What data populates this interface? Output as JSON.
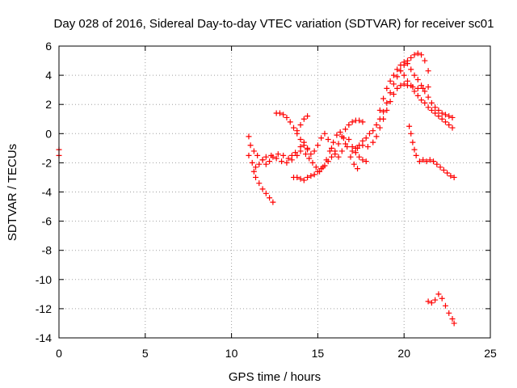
{
  "chart_data": {
    "type": "scatter",
    "title": "Day 028 of 2016, Sidereal Day-to-day VTEC variation (SDTVAR) for receiver sc01",
    "xlabel": "GPS time / hours",
    "ylabel": "SDTVAR / TECUs",
    "xlim": [
      0,
      25
    ],
    "ylim": [
      -14,
      6
    ],
    "xticks": [
      "0",
      "5",
      "10",
      "15",
      "20",
      "25"
    ],
    "yticks": [
      "6",
      "4",
      "2",
      "0",
      "-2",
      "-4",
      "-6",
      "-8",
      "-10",
      "-12",
      "-14"
    ],
    "grid": true,
    "marker": "+",
    "color": "#ff0000",
    "series": [
      {
        "name": "t0",
        "points": [
          [
            0.0,
            -1.1
          ],
          [
            0.0,
            -1.5
          ]
        ]
      },
      {
        "name": "a",
        "points": [
          [
            11.0,
            -0.2
          ],
          [
            11.1,
            -0.8
          ],
          [
            11.3,
            -1.2
          ],
          [
            11.5,
            -1.5
          ],
          [
            11.8,
            -1.8
          ],
          [
            12.0,
            -2.1
          ],
          [
            12.2,
            -1.9
          ],
          [
            12.4,
            -1.6
          ],
          [
            12.7,
            -1.4
          ],
          [
            13.0,
            -1.5
          ],
          [
            13.3,
            -1.7
          ],
          [
            13.5,
            -1.5
          ],
          [
            13.7,
            -1.3
          ],
          [
            14.0,
            -0.9
          ],
          [
            14.2,
            -0.6
          ],
          [
            14.4,
            -1.0
          ],
          [
            14.6,
            -1.4
          ],
          [
            14.8,
            -1.2
          ],
          [
            15.0,
            -0.8
          ],
          [
            15.2,
            -0.3
          ],
          [
            15.4,
            0.0
          ],
          [
            15.6,
            -0.4
          ],
          [
            15.8,
            -1.0
          ],
          [
            16.0,
            -1.4
          ],
          [
            16.2,
            -1.6
          ],
          [
            16.4,
            -1.2
          ],
          [
            16.6,
            -0.7
          ],
          [
            16.8,
            -0.4
          ],
          [
            17.0,
            -0.9
          ],
          [
            17.2,
            -1.3
          ],
          [
            17.4,
            -1.6
          ],
          [
            17.6,
            -1.8
          ],
          [
            17.8,
            -1.9
          ]
        ]
      },
      {
        "name": "b",
        "points": [
          [
            11.0,
            -1.5
          ],
          [
            11.2,
            -2.0
          ],
          [
            11.4,
            -2.3
          ],
          [
            11.6,
            -2.1
          ],
          [
            11.8,
            -1.8
          ],
          [
            12.0,
            -1.6
          ],
          [
            12.3,
            -1.5
          ],
          [
            12.6,
            -1.7
          ],
          [
            12.9,
            -1.9
          ],
          [
            13.2,
            -2.0
          ],
          [
            13.5,
            -1.8
          ],
          [
            13.8,
            -1.5
          ],
          [
            14.0,
            -1.2
          ],
          [
            14.3,
            -1.4
          ],
          [
            14.5,
            -1.7
          ],
          [
            14.7,
            -2.0
          ],
          [
            14.9,
            -2.3
          ],
          [
            15.1,
            -2.6
          ],
          [
            15.3,
            -2.3
          ],
          [
            15.5,
            -1.8
          ],
          [
            15.7,
            -1.2
          ],
          [
            15.9,
            -0.6
          ],
          [
            16.1,
            -0.1
          ],
          [
            16.3,
            0.1
          ],
          [
            16.5,
            -0.3
          ],
          [
            16.7,
            -0.9
          ],
          [
            16.9,
            -1.6
          ],
          [
            17.1,
            -2.1
          ],
          [
            17.3,
            -2.4
          ]
        ]
      },
      {
        "name": "c",
        "points": [
          [
            11.3,
            -2.6
          ],
          [
            11.4,
            -3.0
          ],
          [
            11.6,
            -3.4
          ],
          [
            11.8,
            -3.8
          ],
          [
            12.0,
            -4.1
          ],
          [
            12.2,
            -4.4
          ],
          [
            12.4,
            -4.7
          ]
        ]
      },
      {
        "name": "d",
        "points": [
          [
            12.6,
            1.4
          ],
          [
            12.8,
            1.4
          ],
          [
            13.0,
            1.3
          ],
          [
            13.2,
            1.1
          ],
          [
            13.4,
            0.8
          ],
          [
            13.6,
            0.4
          ],
          [
            13.8,
            0.0
          ],
          [
            14.0,
            -0.4
          ],
          [
            14.2,
            -0.8
          ],
          [
            14.4,
            -1.1
          ]
        ]
      },
      {
        "name": "e",
        "points": [
          [
            13.8,
            0.2
          ],
          [
            14.0,
            0.6
          ],
          [
            14.2,
            1.0
          ],
          [
            14.4,
            1.2
          ]
        ]
      },
      {
        "name": "f",
        "points": [
          [
            13.6,
            -3.0
          ],
          [
            13.8,
            -3.0
          ],
          [
            14.0,
            -3.1
          ],
          [
            14.2,
            -3.2
          ],
          [
            14.4,
            -3.0
          ],
          [
            14.6,
            -2.9
          ],
          [
            14.8,
            -2.8
          ],
          [
            15.0,
            -2.6
          ],
          [
            15.2,
            -2.4
          ],
          [
            15.4,
            -2.2
          ],
          [
            15.6,
            -1.9
          ],
          [
            15.8,
            -1.6
          ],
          [
            16.0,
            -1.2
          ],
          [
            16.2,
            -0.7
          ],
          [
            16.4,
            -0.2
          ],
          [
            16.6,
            0.3
          ],
          [
            16.8,
            0.6
          ],
          [
            17.0,
            0.8
          ],
          [
            17.2,
            0.9
          ],
          [
            17.4,
            0.9
          ],
          [
            17.6,
            0.8
          ]
        ]
      },
      {
        "name": "g",
        "points": [
          [
            17.2,
            -1.0
          ],
          [
            17.4,
            -0.8
          ],
          [
            17.6,
            -0.5
          ],
          [
            17.8,
            -0.3
          ],
          [
            18.0,
            0.0
          ],
          [
            18.2,
            0.2
          ],
          [
            18.4,
            0.6
          ],
          [
            18.6,
            1.0
          ],
          [
            18.8,
            1.5
          ],
          [
            19.0,
            2.1
          ],
          [
            19.2,
            2.8
          ],
          [
            19.4,
            3.4
          ],
          [
            19.6,
            3.9
          ],
          [
            19.8,
            4.3
          ],
          [
            20.0,
            4.7
          ],
          [
            20.2,
            5.0
          ],
          [
            20.4,
            5.2
          ],
          [
            20.6,
            5.4
          ],
          [
            20.8,
            5.5
          ],
          [
            21.0,
            5.4
          ],
          [
            21.2,
            5.0
          ],
          [
            21.4,
            4.3
          ]
        ]
      },
      {
        "name": "h",
        "points": [
          [
            17.0,
            -1.2
          ],
          [
            17.3,
            -1.0
          ],
          [
            17.6,
            -0.8
          ],
          [
            17.9,
            -0.9
          ],
          [
            18.2,
            -0.6
          ],
          [
            18.4,
            -0.2
          ],
          [
            18.6,
            0.4
          ],
          [
            18.8,
            1.0
          ],
          [
            19.0,
            1.6
          ],
          [
            19.2,
            2.2
          ],
          [
            19.4,
            2.7
          ],
          [
            19.6,
            3.1
          ],
          [
            19.8,
            3.3
          ],
          [
            20.0,
            3.4
          ],
          [
            20.2,
            3.3
          ],
          [
            20.5,
            3.2
          ],
          [
            20.8,
            3.1
          ],
          [
            21.1,
            3.1
          ],
          [
            21.4,
            3.2
          ]
        ]
      },
      {
        "name": "i",
        "points": [
          [
            18.6,
            1.6
          ],
          [
            18.8,
            2.4
          ],
          [
            19.0,
            3.1
          ],
          [
            19.2,
            3.6
          ],
          [
            19.4,
            4.0
          ],
          [
            19.6,
            4.4
          ],
          [
            19.8,
            4.7
          ],
          [
            20.0,
            4.9
          ],
          [
            20.2,
            4.8
          ],
          [
            20.4,
            4.4
          ],
          [
            20.6,
            4.0
          ],
          [
            20.8,
            3.7
          ],
          [
            21.0,
            3.3
          ],
          [
            21.2,
            2.9
          ],
          [
            21.4,
            2.5
          ],
          [
            21.6,
            2.1
          ],
          [
            21.8,
            1.8
          ],
          [
            22.0,
            1.6
          ],
          [
            22.2,
            1.4
          ],
          [
            22.4,
            1.3
          ],
          [
            22.6,
            1.2
          ],
          [
            22.8,
            1.1
          ]
        ]
      },
      {
        "name": "j",
        "points": [
          [
            19.8,
            4.3
          ],
          [
            20.0,
            4.0
          ],
          [
            20.2,
            3.6
          ],
          [
            20.4,
            3.3
          ],
          [
            20.6,
            2.9
          ],
          [
            20.8,
            2.6
          ],
          [
            21.0,
            2.3
          ],
          [
            21.2,
            2.1
          ],
          [
            21.4,
            1.8
          ],
          [
            21.6,
            1.6
          ],
          [
            21.8,
            1.4
          ],
          [
            22.0,
            1.2
          ],
          [
            22.2,
            1.0
          ],
          [
            22.4,
            0.8
          ],
          [
            22.6,
            0.6
          ],
          [
            22.8,
            0.4
          ]
        ]
      },
      {
        "name": "k",
        "points": [
          [
            20.3,
            0.5
          ],
          [
            20.4,
            0.0
          ],
          [
            20.5,
            -0.6
          ],
          [
            20.6,
            -1.1
          ],
          [
            20.7,
            -1.5
          ],
          [
            20.9,
            -1.9
          ],
          [
            21.1,
            -1.8
          ],
          [
            21.3,
            -1.9
          ],
          [
            21.5,
            -1.8
          ],
          [
            21.7,
            -1.9
          ],
          [
            21.9,
            -2.1
          ],
          [
            22.1,
            -2.3
          ],
          [
            22.3,
            -2.5
          ],
          [
            22.5,
            -2.7
          ],
          [
            22.7,
            -2.9
          ],
          [
            22.9,
            -3.0
          ]
        ]
      },
      {
        "name": "l",
        "points": [
          [
            21.4,
            -11.5
          ],
          [
            21.6,
            -11.6
          ],
          [
            21.8,
            -11.4
          ],
          [
            22.0,
            -11.0
          ],
          [
            22.2,
            -11.3
          ],
          [
            22.4,
            -11.8
          ],
          [
            22.6,
            -12.3
          ],
          [
            22.8,
            -12.7
          ],
          [
            22.9,
            -13.0
          ]
        ]
      }
    ]
  }
}
